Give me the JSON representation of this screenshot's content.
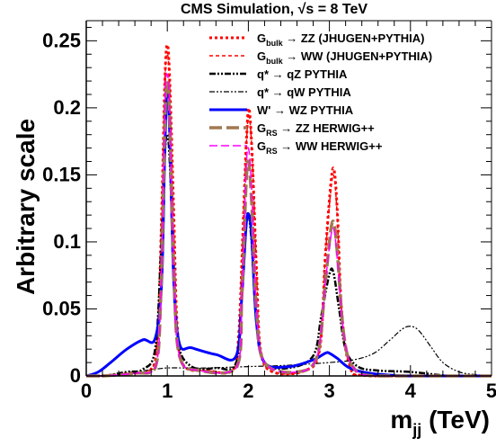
{
  "chart_data": {
    "type": "line",
    "title": "CMS Simulation, √s = 8 TeV",
    "xlabel": {
      "base": "m",
      "sub": "jj",
      "tail": " (TeV)"
    },
    "ylabel": "Arbitrary scale",
    "xlim": [
      0,
      5
    ],
    "ylim": [
      0,
      0.265
    ],
    "x_ticks": [
      {
        "v": 0,
        "label": "0"
      },
      {
        "v": 1,
        "label": "1"
      },
      {
        "v": 2,
        "label": "2"
      },
      {
        "v": 3,
        "label": "3"
      },
      {
        "v": 4,
        "label": "4"
      },
      {
        "v": 5,
        "label": "5"
      }
    ],
    "y_ticks": [
      {
        "v": 0,
        "label": "0"
      },
      {
        "v": 0.05,
        "label": "0.05"
      },
      {
        "v": 0.1,
        "label": "0.1"
      },
      {
        "v": 0.15,
        "label": "0.15"
      },
      {
        "v": 0.2,
        "label": "0.2"
      },
      {
        "v": 0.25,
        "label": "0.25"
      }
    ],
    "legend_position": "top-right",
    "series": [
      {
        "color": "#ff0000",
        "width": 3,
        "dash": "3,3",
        "legend": {
          "pre": "G",
          "sub": "bulk",
          "post": " → ZZ (JHUGEN+PYTHIA)"
        },
        "points": [
          [
            0,
            0
          ],
          [
            0.2,
            0
          ],
          [
            0.5,
            0.002
          ],
          [
            0.8,
            0.005
          ],
          [
            0.88,
            0.03
          ],
          [
            0.93,
            0.12
          ],
          [
            0.97,
            0.22
          ],
          [
            1.0,
            0.247
          ],
          [
            1.03,
            0.22
          ],
          [
            1.08,
            0.12
          ],
          [
            1.12,
            0.04
          ],
          [
            1.2,
            0.008
          ],
          [
            1.5,
            0.004
          ],
          [
            1.8,
            0.004
          ],
          [
            1.88,
            0.03
          ],
          [
            1.94,
            0.12
          ],
          [
            1.98,
            0.18
          ],
          [
            2.01,
            0.199
          ],
          [
            2.05,
            0.16
          ],
          [
            2.1,
            0.08
          ],
          [
            2.15,
            0.02
          ],
          [
            2.3,
            0.003
          ],
          [
            2.7,
            0.004
          ],
          [
            2.88,
            0.02
          ],
          [
            2.95,
            0.09
          ],
          [
            3.02,
            0.145
          ],
          [
            3.06,
            0.153
          ],
          [
            3.1,
            0.12
          ],
          [
            3.15,
            0.05
          ],
          [
            3.25,
            0.008
          ],
          [
            3.5,
            0
          ],
          [
            5,
            0
          ]
        ]
      },
      {
        "color": "#ff0000",
        "width": 1.5,
        "dash": "4,3",
        "legend": {
          "pre": "G",
          "sub": "bulk",
          "post": " → WW (JHUGEN+PYTHIA)"
        },
        "points": [
          [
            0,
            0
          ],
          [
            0.2,
            0
          ],
          [
            0.5,
            0.002
          ],
          [
            0.8,
            0.005
          ],
          [
            0.88,
            0.03
          ],
          [
            0.93,
            0.12
          ],
          [
            0.97,
            0.22
          ],
          [
            1.0,
            0.24
          ],
          [
            1.03,
            0.215
          ],
          [
            1.08,
            0.11
          ],
          [
            1.12,
            0.04
          ],
          [
            1.2,
            0.008
          ],
          [
            1.5,
            0.004
          ],
          [
            1.8,
            0.004
          ],
          [
            1.88,
            0.03
          ],
          [
            1.94,
            0.12
          ],
          [
            1.98,
            0.178
          ],
          [
            2.01,
            0.195
          ],
          [
            2.05,
            0.16
          ],
          [
            2.1,
            0.08
          ],
          [
            2.15,
            0.02
          ],
          [
            2.3,
            0.003
          ],
          [
            2.7,
            0.004
          ],
          [
            2.88,
            0.02
          ],
          [
            2.95,
            0.09
          ],
          [
            3.02,
            0.14
          ],
          [
            3.06,
            0.148
          ],
          [
            3.1,
            0.115
          ],
          [
            3.15,
            0.05
          ],
          [
            3.25,
            0.008
          ],
          [
            3.5,
            0
          ],
          [
            5,
            0
          ]
        ]
      },
      {
        "color": "#000000",
        "width": 2.5,
        "dash": "7,2,2,2,2,2",
        "legend": {
          "pre": "q* → qZ   PYTHIA",
          "sub": "",
          "post": ""
        },
        "points": [
          [
            0,
            0
          ],
          [
            0.2,
            0
          ],
          [
            0.5,
            0.003
          ],
          [
            0.7,
            0.005
          ],
          [
            0.85,
            0.02
          ],
          [
            0.92,
            0.09
          ],
          [
            0.97,
            0.165
          ],
          [
            1.0,
            0.18
          ],
          [
            1.03,
            0.16
          ],
          [
            1.08,
            0.08
          ],
          [
            1.13,
            0.025
          ],
          [
            1.3,
            0.007
          ],
          [
            1.6,
            0.006
          ],
          [
            1.85,
            0.01
          ],
          [
            1.92,
            0.06
          ],
          [
            1.97,
            0.11
          ],
          [
            2.0,
            0.12
          ],
          [
            2.04,
            0.1
          ],
          [
            2.1,
            0.04
          ],
          [
            2.2,
            0.01
          ],
          [
            2.5,
            0.006
          ],
          [
            2.8,
            0.015
          ],
          [
            2.9,
            0.045
          ],
          [
            3.0,
            0.076
          ],
          [
            3.05,
            0.077
          ],
          [
            3.12,
            0.05
          ],
          [
            3.2,
            0.02
          ],
          [
            3.35,
            0.007
          ],
          [
            3.6,
            0.004
          ],
          [
            4.0,
            0.003
          ],
          [
            4.5,
            0
          ],
          [
            5,
            0
          ]
        ]
      },
      {
        "color": "#000000",
        "width": 1.2,
        "dash": "6,2,2,2,2,2",
        "legend": {
          "pre": "q* → qW   PYTHIA",
          "sub": "",
          "post": ""
        },
        "points": [
          [
            0,
            0
          ],
          [
            0.3,
            0
          ],
          [
            0.6,
            0.003
          ],
          [
            0.85,
            0.005
          ],
          [
            1.0,
            0.006
          ],
          [
            1.2,
            0.006
          ],
          [
            1.5,
            0.006
          ],
          [
            2.0,
            0.007
          ],
          [
            2.5,
            0.008
          ],
          [
            3.0,
            0.01
          ],
          [
            3.3,
            0.012
          ],
          [
            3.55,
            0.017
          ],
          [
            3.75,
            0.027
          ],
          [
            3.9,
            0.035
          ],
          [
            4.0,
            0.037
          ],
          [
            4.1,
            0.034
          ],
          [
            4.25,
            0.022
          ],
          [
            4.4,
            0.01
          ],
          [
            4.6,
            0.003
          ],
          [
            4.8,
            0.001
          ],
          [
            5,
            0
          ]
        ]
      },
      {
        "color": "#0000ff",
        "width": 3,
        "dash": "",
        "legend": {
          "pre": "W' → WZ   PYTHIA",
          "sub": "",
          "post": ""
        },
        "points": [
          [
            0,
            0
          ],
          [
            0.15,
            0.003
          ],
          [
            0.3,
            0.01
          ],
          [
            0.5,
            0.02
          ],
          [
            0.7,
            0.027
          ],
          [
            0.85,
            0.028
          ],
          [
            0.93,
            0.07
          ],
          [
            0.97,
            0.17
          ],
          [
            1.0,
            0.215
          ],
          [
            1.03,
            0.18
          ],
          [
            1.08,
            0.07
          ],
          [
            1.15,
            0.024
          ],
          [
            1.3,
            0.021
          ],
          [
            1.6,
            0.016
          ],
          [
            1.85,
            0.015
          ],
          [
            1.92,
            0.06
          ],
          [
            1.97,
            0.11
          ],
          [
            2.0,
            0.121
          ],
          [
            2.04,
            0.105
          ],
          [
            2.1,
            0.04
          ],
          [
            2.2,
            0.01
          ],
          [
            2.5,
            0.007
          ],
          [
            2.8,
            0.012
          ],
          [
            2.95,
            0.017
          ],
          [
            3.0,
            0.017
          ],
          [
            3.1,
            0.013
          ],
          [
            3.25,
            0.006
          ],
          [
            3.5,
            0.002
          ],
          [
            4,
            0
          ],
          [
            5,
            0
          ]
        ]
      },
      {
        "color": "#a07850",
        "width": 3.5,
        "dash": "14,5",
        "legend": {
          "pre": "G",
          "sub": "RS",
          "post": " → ZZ   HERWIG++"
        },
        "points": [
          [
            0,
            0
          ],
          [
            0.2,
            0
          ],
          [
            0.6,
            0.002
          ],
          [
            0.85,
            0.006
          ],
          [
            0.92,
            0.06
          ],
          [
            0.97,
            0.19
          ],
          [
            1.0,
            0.22
          ],
          [
            1.03,
            0.19
          ],
          [
            1.08,
            0.08
          ],
          [
            1.15,
            0.015
          ],
          [
            1.4,
            0.004
          ],
          [
            1.85,
            0.006
          ],
          [
            1.92,
            0.06
          ],
          [
            1.97,
            0.14
          ],
          [
            2.0,
            0.16
          ],
          [
            2.04,
            0.13
          ],
          [
            2.1,
            0.05
          ],
          [
            2.2,
            0.01
          ],
          [
            2.6,
            0.003
          ],
          [
            2.85,
            0.015
          ],
          [
            2.95,
            0.07
          ],
          [
            3.02,
            0.11
          ],
          [
            3.06,
            0.113
          ],
          [
            3.1,
            0.09
          ],
          [
            3.18,
            0.03
          ],
          [
            3.3,
            0.006
          ],
          [
            3.6,
            0
          ],
          [
            5,
            0
          ]
        ]
      },
      {
        "color": "#ff00ff",
        "width": 1.5,
        "dash": "9,4",
        "legend": {
          "pre": "G",
          "sub": "RS",
          "post": " → WW   HERWIG++"
        },
        "points": [
          [
            0,
            0
          ],
          [
            0.2,
            0
          ],
          [
            0.6,
            0.002
          ],
          [
            0.85,
            0.006
          ],
          [
            0.92,
            0.06
          ],
          [
            0.97,
            0.2
          ],
          [
            1.0,
            0.225
          ],
          [
            1.03,
            0.195
          ],
          [
            1.08,
            0.08
          ],
          [
            1.15,
            0.015
          ],
          [
            1.4,
            0.004
          ],
          [
            1.85,
            0.006
          ],
          [
            1.92,
            0.06
          ],
          [
            1.97,
            0.15
          ],
          [
            2.0,
            0.17
          ],
          [
            2.04,
            0.14
          ],
          [
            2.1,
            0.05
          ],
          [
            2.2,
            0.01
          ],
          [
            2.6,
            0.003
          ],
          [
            2.85,
            0.015
          ],
          [
            2.95,
            0.07
          ],
          [
            3.02,
            0.105
          ],
          [
            3.06,
            0.108
          ],
          [
            3.1,
            0.085
          ],
          [
            3.18,
            0.03
          ],
          [
            3.3,
            0.006
          ],
          [
            3.6,
            0
          ],
          [
            5,
            0
          ]
        ]
      }
    ]
  }
}
